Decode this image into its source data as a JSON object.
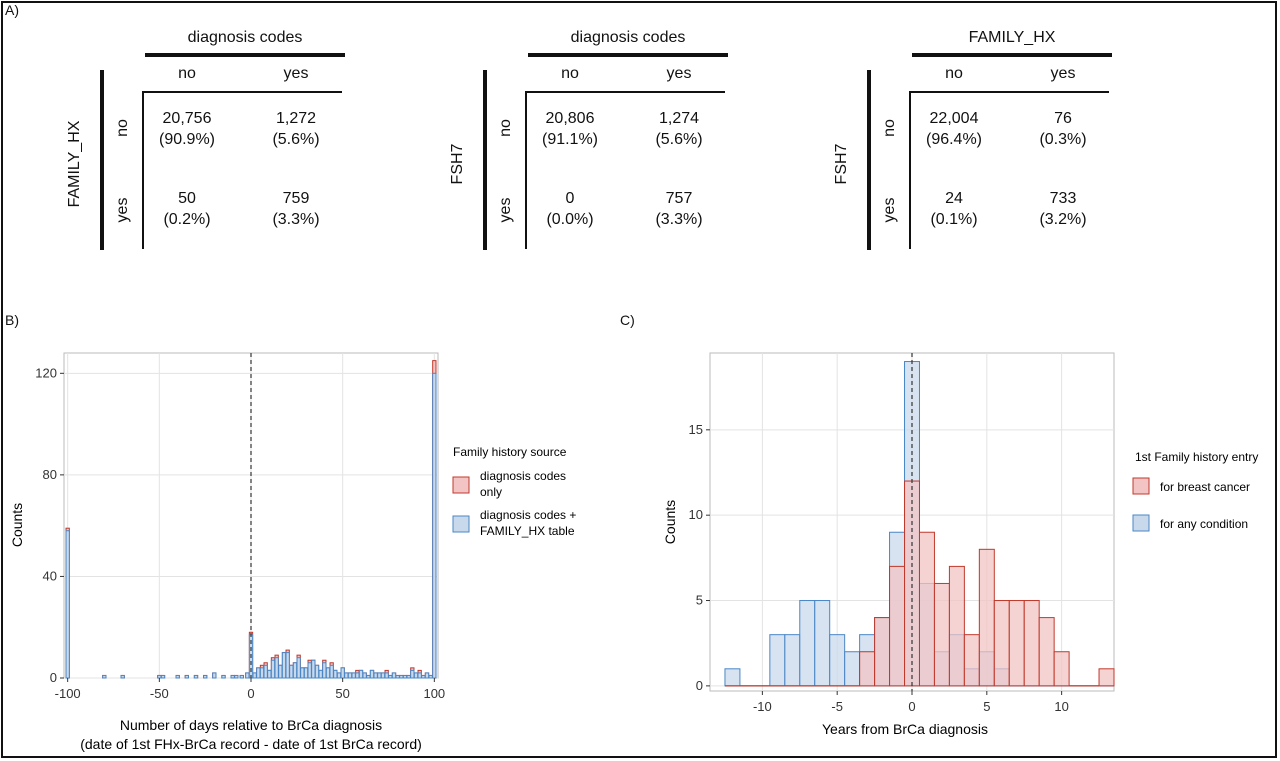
{
  "panel_labels": {
    "a": "A)",
    "b": "B)",
    "c": "C)"
  },
  "tables": [
    {
      "col_header": "diagnosis codes",
      "row_header": "FAMILY_HX",
      "col_labels": [
        "no",
        "yes"
      ],
      "row_labels": [
        "no",
        "yes"
      ],
      "cells": [
        [
          "20,756",
          "(90.9%)"
        ],
        [
          "1,272",
          "(5.6%)"
        ],
        [
          "50",
          "(0.2%)"
        ],
        [
          "759",
          "(3.3%)"
        ]
      ]
    },
    {
      "col_header": "diagnosis codes",
      "row_header": "FSH7",
      "col_labels": [
        "no",
        "yes"
      ],
      "row_labels": [
        "no",
        "yes"
      ],
      "cells": [
        [
          "20,806",
          "(91.1%)"
        ],
        [
          "1,274",
          "(5.6%)"
        ],
        [
          "0",
          "(0.0%)"
        ],
        [
          "757",
          "(3.3%)"
        ]
      ]
    },
    {
      "col_header": "FAMILY_HX",
      "row_header": "FSH7",
      "col_labels": [
        "no",
        "yes"
      ],
      "row_labels": [
        "no",
        "yes"
      ],
      "cells": [
        [
          "22,004",
          "(96.4%)"
        ],
        [
          "76",
          "(0.3%)"
        ],
        [
          "24",
          "(0.1%)"
        ],
        [
          "733",
          "(3.2%)"
        ]
      ]
    }
  ],
  "colors": {
    "red_fill": "#f2c4c4",
    "red_edge": "#c0392b",
    "blue_fill": "#c9d9ec",
    "blue_edge": "#4a86c5"
  },
  "chart_data": [
    {
      "type": "bar",
      "xlabel": "Number of days relative to BrCa diagnosis",
      "xlabel2": "(date of 1st FHx-BrCa record - date of 1st BrCa record)",
      "ylabel": "Counts",
      "xlim": [
        -102,
        102
      ],
      "ylim": [
        0,
        128
      ],
      "xticks": [
        -100,
        -50,
        0,
        50,
        100
      ],
      "yticks": [
        0,
        40,
        80,
        120
      ],
      "vline": 0,
      "legend_title": "Family history source",
      "series": [
        {
          "name": "diagnosis codes only",
          "color": "red",
          "x": [
            -100,
            -80,
            -70,
            -50,
            -48,
            -40,
            -35,
            -30,
            -25,
            -20,
            -15,
            -10,
            -8,
            -5,
            -2,
            0,
            2,
            4,
            6,
            8,
            10,
            12,
            14,
            16,
            18,
            20,
            22,
            24,
            26,
            28,
            30,
            32,
            34,
            36,
            38,
            40,
            42,
            44,
            46,
            48,
            50,
            52,
            54,
            56,
            58,
            60,
            62,
            64,
            66,
            68,
            70,
            72,
            74,
            76,
            78,
            80,
            82,
            84,
            86,
            88,
            90,
            92,
            94,
            96,
            98,
            100
          ],
          "values": [
            59,
            1,
            1,
            1,
            1,
            1,
            1,
            1,
            1,
            2,
            1,
            1,
            1,
            1,
            2,
            18,
            2,
            4,
            5,
            6,
            3,
            8,
            9,
            5,
            10,
            11,
            5,
            6,
            9,
            4,
            4,
            7,
            7,
            5,
            3,
            7,
            4,
            6,
            3,
            2,
            4,
            2,
            2,
            2,
            3,
            3,
            2,
            1,
            3,
            2,
            2,
            2,
            3,
            1,
            2,
            1,
            1,
            1,
            1,
            4,
            2,
            3,
            1,
            2,
            1,
            125
          ]
        },
        {
          "name": "diagnosis codes + FAMILY_HX table",
          "color": "blue",
          "x": [
            -100,
            -80,
            -70,
            -50,
            -48,
            -40,
            -35,
            -30,
            -25,
            -20,
            -15,
            -10,
            -8,
            -5,
            -2,
            0,
            2,
            4,
            6,
            8,
            10,
            12,
            14,
            16,
            18,
            20,
            22,
            24,
            26,
            28,
            30,
            32,
            34,
            36,
            38,
            40,
            42,
            44,
            46,
            48,
            50,
            52,
            54,
            56,
            58,
            60,
            62,
            64,
            66,
            68,
            70,
            72,
            74,
            76,
            78,
            80,
            82,
            84,
            86,
            88,
            90,
            92,
            94,
            96,
            98,
            100
          ],
          "values": [
            58,
            1,
            1,
            1,
            1,
            1,
            1,
            1,
            1,
            2,
            1,
            1,
            1,
            1,
            2,
            17,
            2,
            4,
            4,
            5,
            3,
            7,
            8,
            5,
            10,
            10,
            5,
            6,
            8,
            4,
            4,
            6,
            7,
            5,
            3,
            6,
            4,
            5,
            3,
            2,
            4,
            2,
            2,
            2,
            2,
            3,
            2,
            1,
            3,
            2,
            2,
            2,
            2,
            1,
            2,
            1,
            1,
            1,
            1,
            3,
            2,
            2,
            1,
            2,
            1,
            120
          ]
        }
      ]
    },
    {
      "type": "bar",
      "xlabel": "Years from BrCa diagnosis",
      "ylabel": "Counts",
      "xlim": [
        -13.5,
        13.5
      ],
      "ylim": [
        -0.3,
        19.5
      ],
      "xticks": [
        -10,
        -5,
        0,
        5,
        10
      ],
      "yticks": [
        0,
        5,
        10,
        15
      ],
      "vline": 0,
      "legend_title": "1st Family history entry",
      "series": [
        {
          "name": "for any condition",
          "color": "blue",
          "x": [
            -12,
            -11,
            -10,
            -9,
            -8,
            -7,
            -6,
            -5,
            -4,
            -3,
            -2,
            -1,
            0,
            1,
            2,
            3,
            4,
            5,
            6,
            7,
            8,
            9,
            10,
            11,
            12,
            13
          ],
          "values": [
            1,
            0,
            0,
            3,
            3,
            5,
            5,
            3,
            2,
            3,
            4,
            9,
            19,
            6,
            2,
            3,
            1,
            2,
            1,
            0,
            0,
            0,
            0,
            0,
            0,
            0
          ]
        },
        {
          "name": "for breast cancer",
          "color": "red",
          "x": [
            -12,
            -11,
            -10,
            -9,
            -8,
            -7,
            -6,
            -5,
            -4,
            -3,
            -2,
            -1,
            0,
            1,
            2,
            3,
            4,
            5,
            6,
            7,
            8,
            9,
            10,
            11,
            12,
            13
          ],
          "values": [
            0,
            0,
            0,
            0,
            0,
            0,
            0,
            0,
            0,
            2,
            4,
            7,
            12,
            9,
            6,
            7,
            3,
            8,
            5,
            5,
            5,
            4,
            2,
            0,
            0,
            1
          ]
        }
      ]
    }
  ]
}
